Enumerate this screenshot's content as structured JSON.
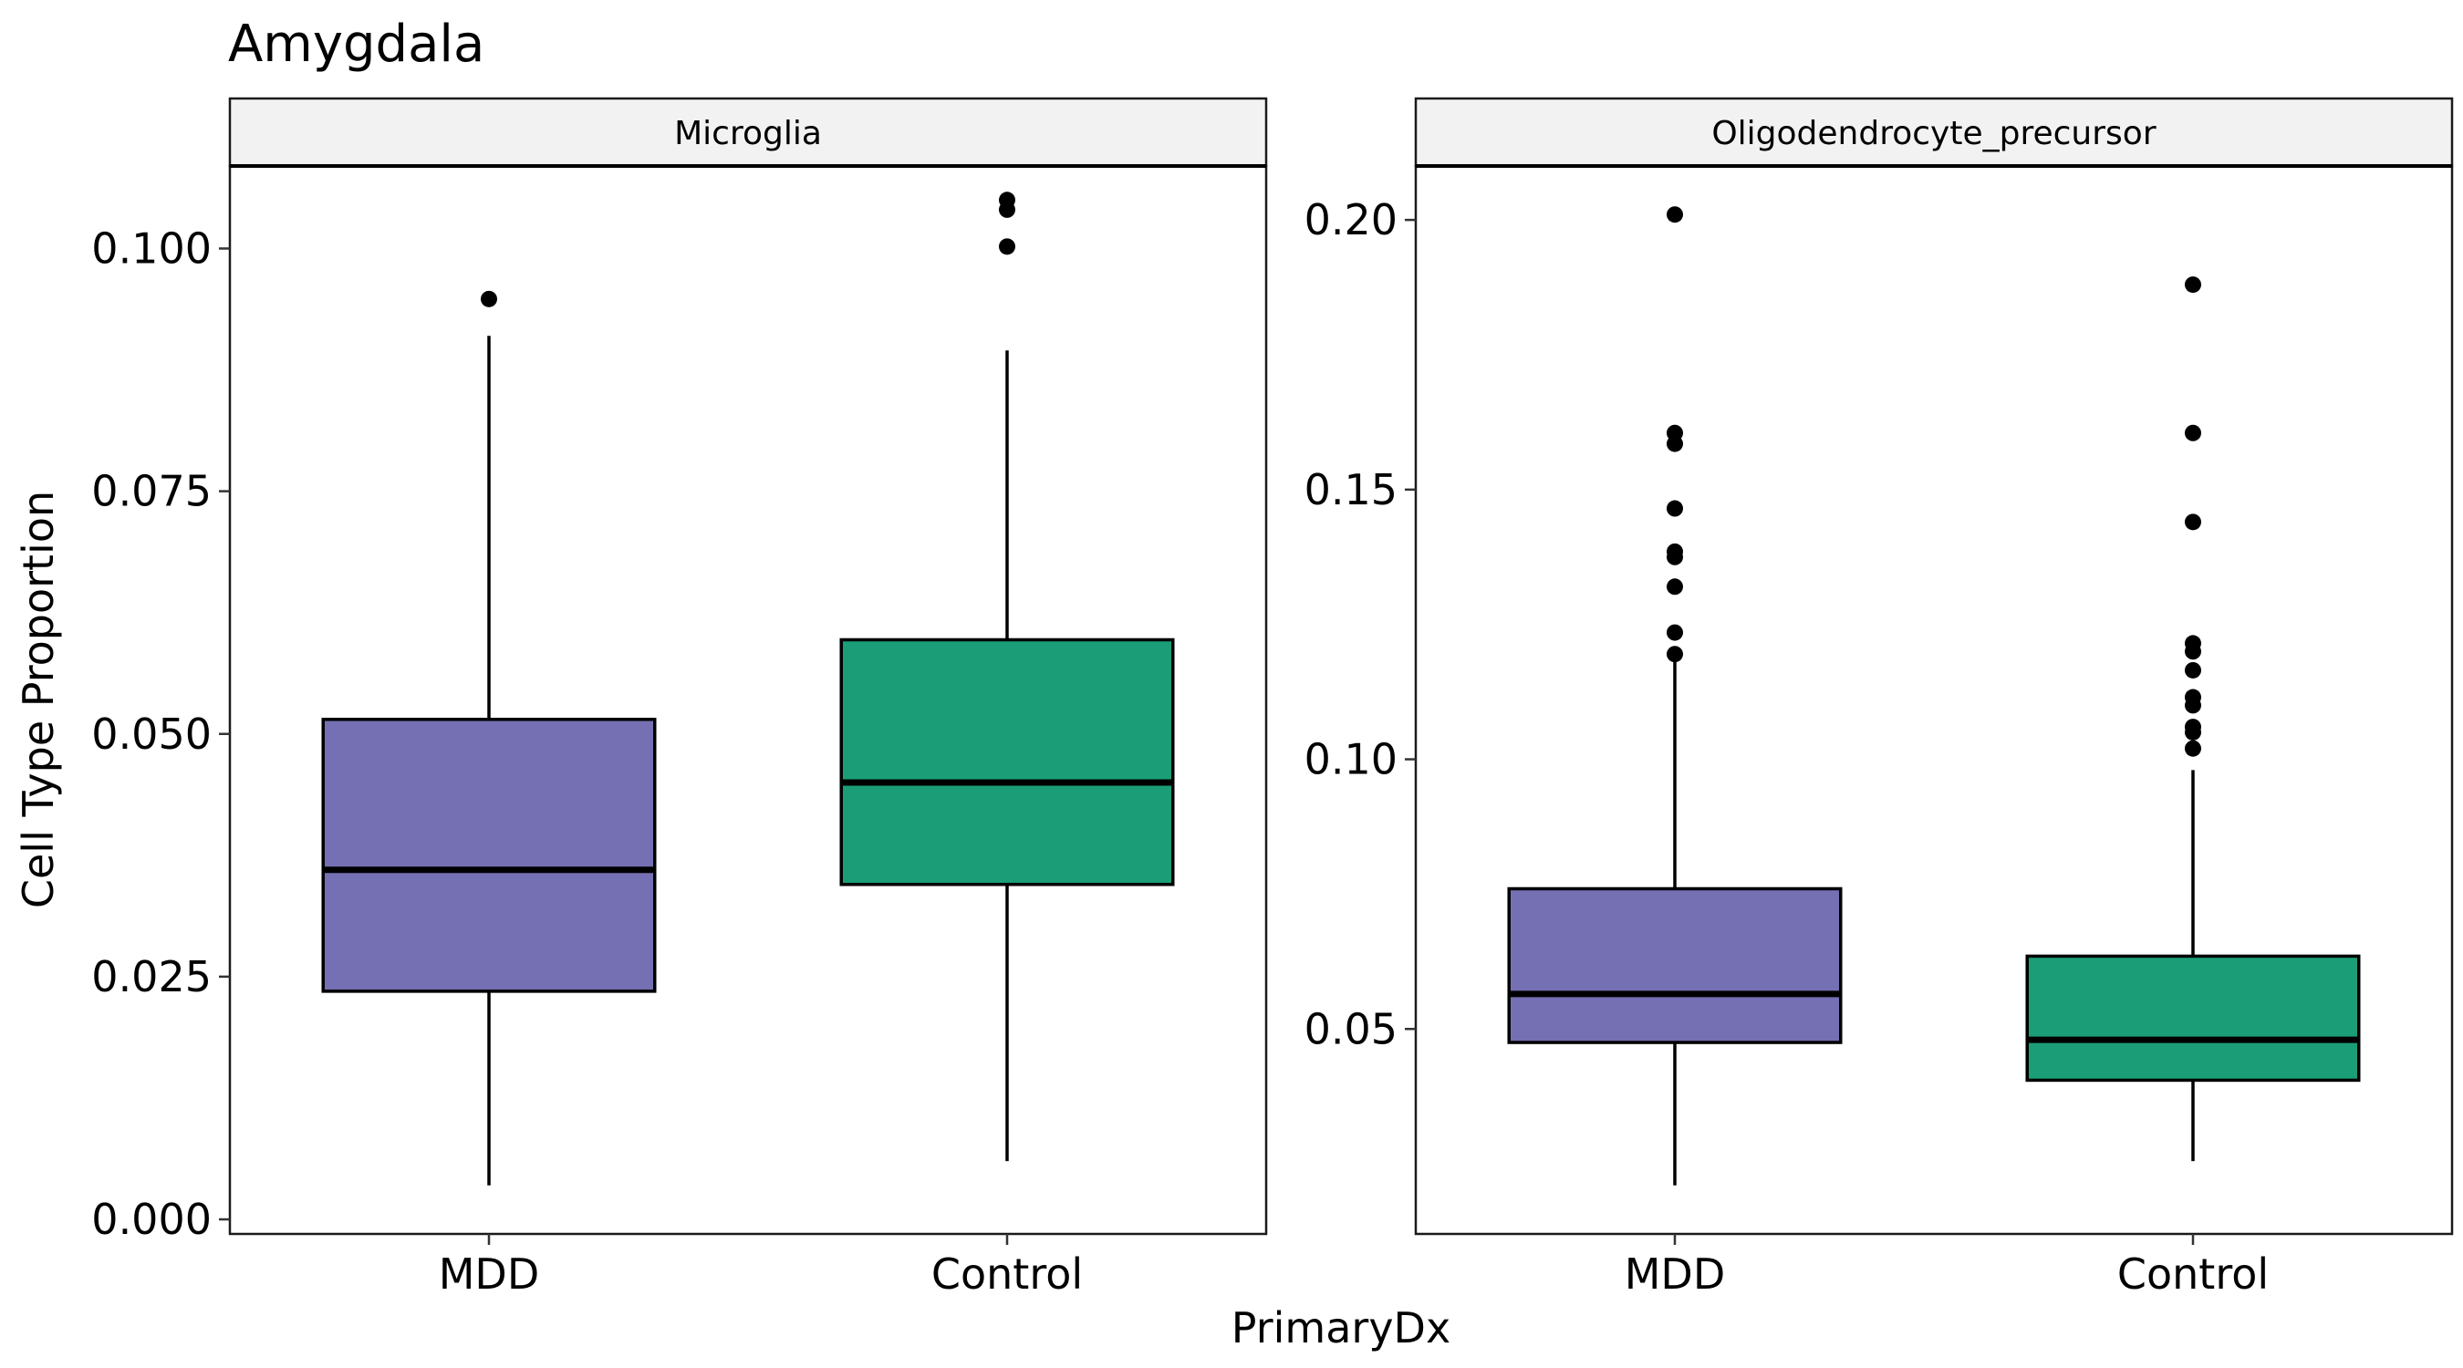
{
  "chart_data": {
    "type": "boxplot",
    "title": "Amygdala",
    "xlabel": "PrimaryDx",
    "ylabel": "Cell Type Proportion",
    "categories": [
      "MDD",
      "Control"
    ],
    "colors": {
      "MDD": "#7570b3",
      "Control": "#1b9e77"
    },
    "legend": "none",
    "grid": false,
    "panels": [
      {
        "name": "Microglia",
        "ylim": [
          -0.0015,
          0.1085
        ],
        "yticks": [
          0.0,
          0.025,
          0.05,
          0.075,
          0.1
        ],
        "ytick_labels": [
          "0.000",
          "0.025",
          "0.050",
          "0.075",
          "0.100"
        ],
        "boxes": [
          {
            "category": "MDD",
            "whisker_low": 0.0035,
            "q1": 0.0235,
            "median": 0.036,
            "q3": 0.0515,
            "whisker_high": 0.091,
            "outliers": [
              0.0948
            ]
          },
          {
            "category": "Control",
            "whisker_low": 0.006,
            "q1": 0.0345,
            "median": 0.045,
            "q3": 0.0597,
            "whisker_high": 0.0895,
            "outliers": [
              0.1002,
              0.104,
              0.105
            ]
          }
        ]
      },
      {
        "name": "Oligodendrocyte_precursor",
        "ylim": [
          0.012,
          0.21
        ],
        "yticks": [
          0.05,
          0.1,
          0.15,
          0.2
        ],
        "ytick_labels": [
          "0.05",
          "0.10",
          "0.15",
          "0.20"
        ],
        "boxes": [
          {
            "category": "MDD",
            "whisker_low": 0.021,
            "q1": 0.0475,
            "median": 0.0565,
            "q3": 0.076,
            "whisker_high": 0.119,
            "outliers": [
              0.1195,
              0.1235,
              0.132,
              0.1375,
              0.1385,
              0.1465,
              0.1585,
              0.1605,
              0.201
            ]
          },
          {
            "category": "Control",
            "whisker_low": 0.0255,
            "q1": 0.0405,
            "median": 0.048,
            "q3": 0.0635,
            "whisker_high": 0.098,
            "outliers": [
              0.102,
              0.105,
              0.106,
              0.11,
              0.1115,
              0.1165,
              0.12,
              0.1215,
              0.144,
              0.1605,
              0.188
            ]
          }
        ]
      }
    ]
  }
}
